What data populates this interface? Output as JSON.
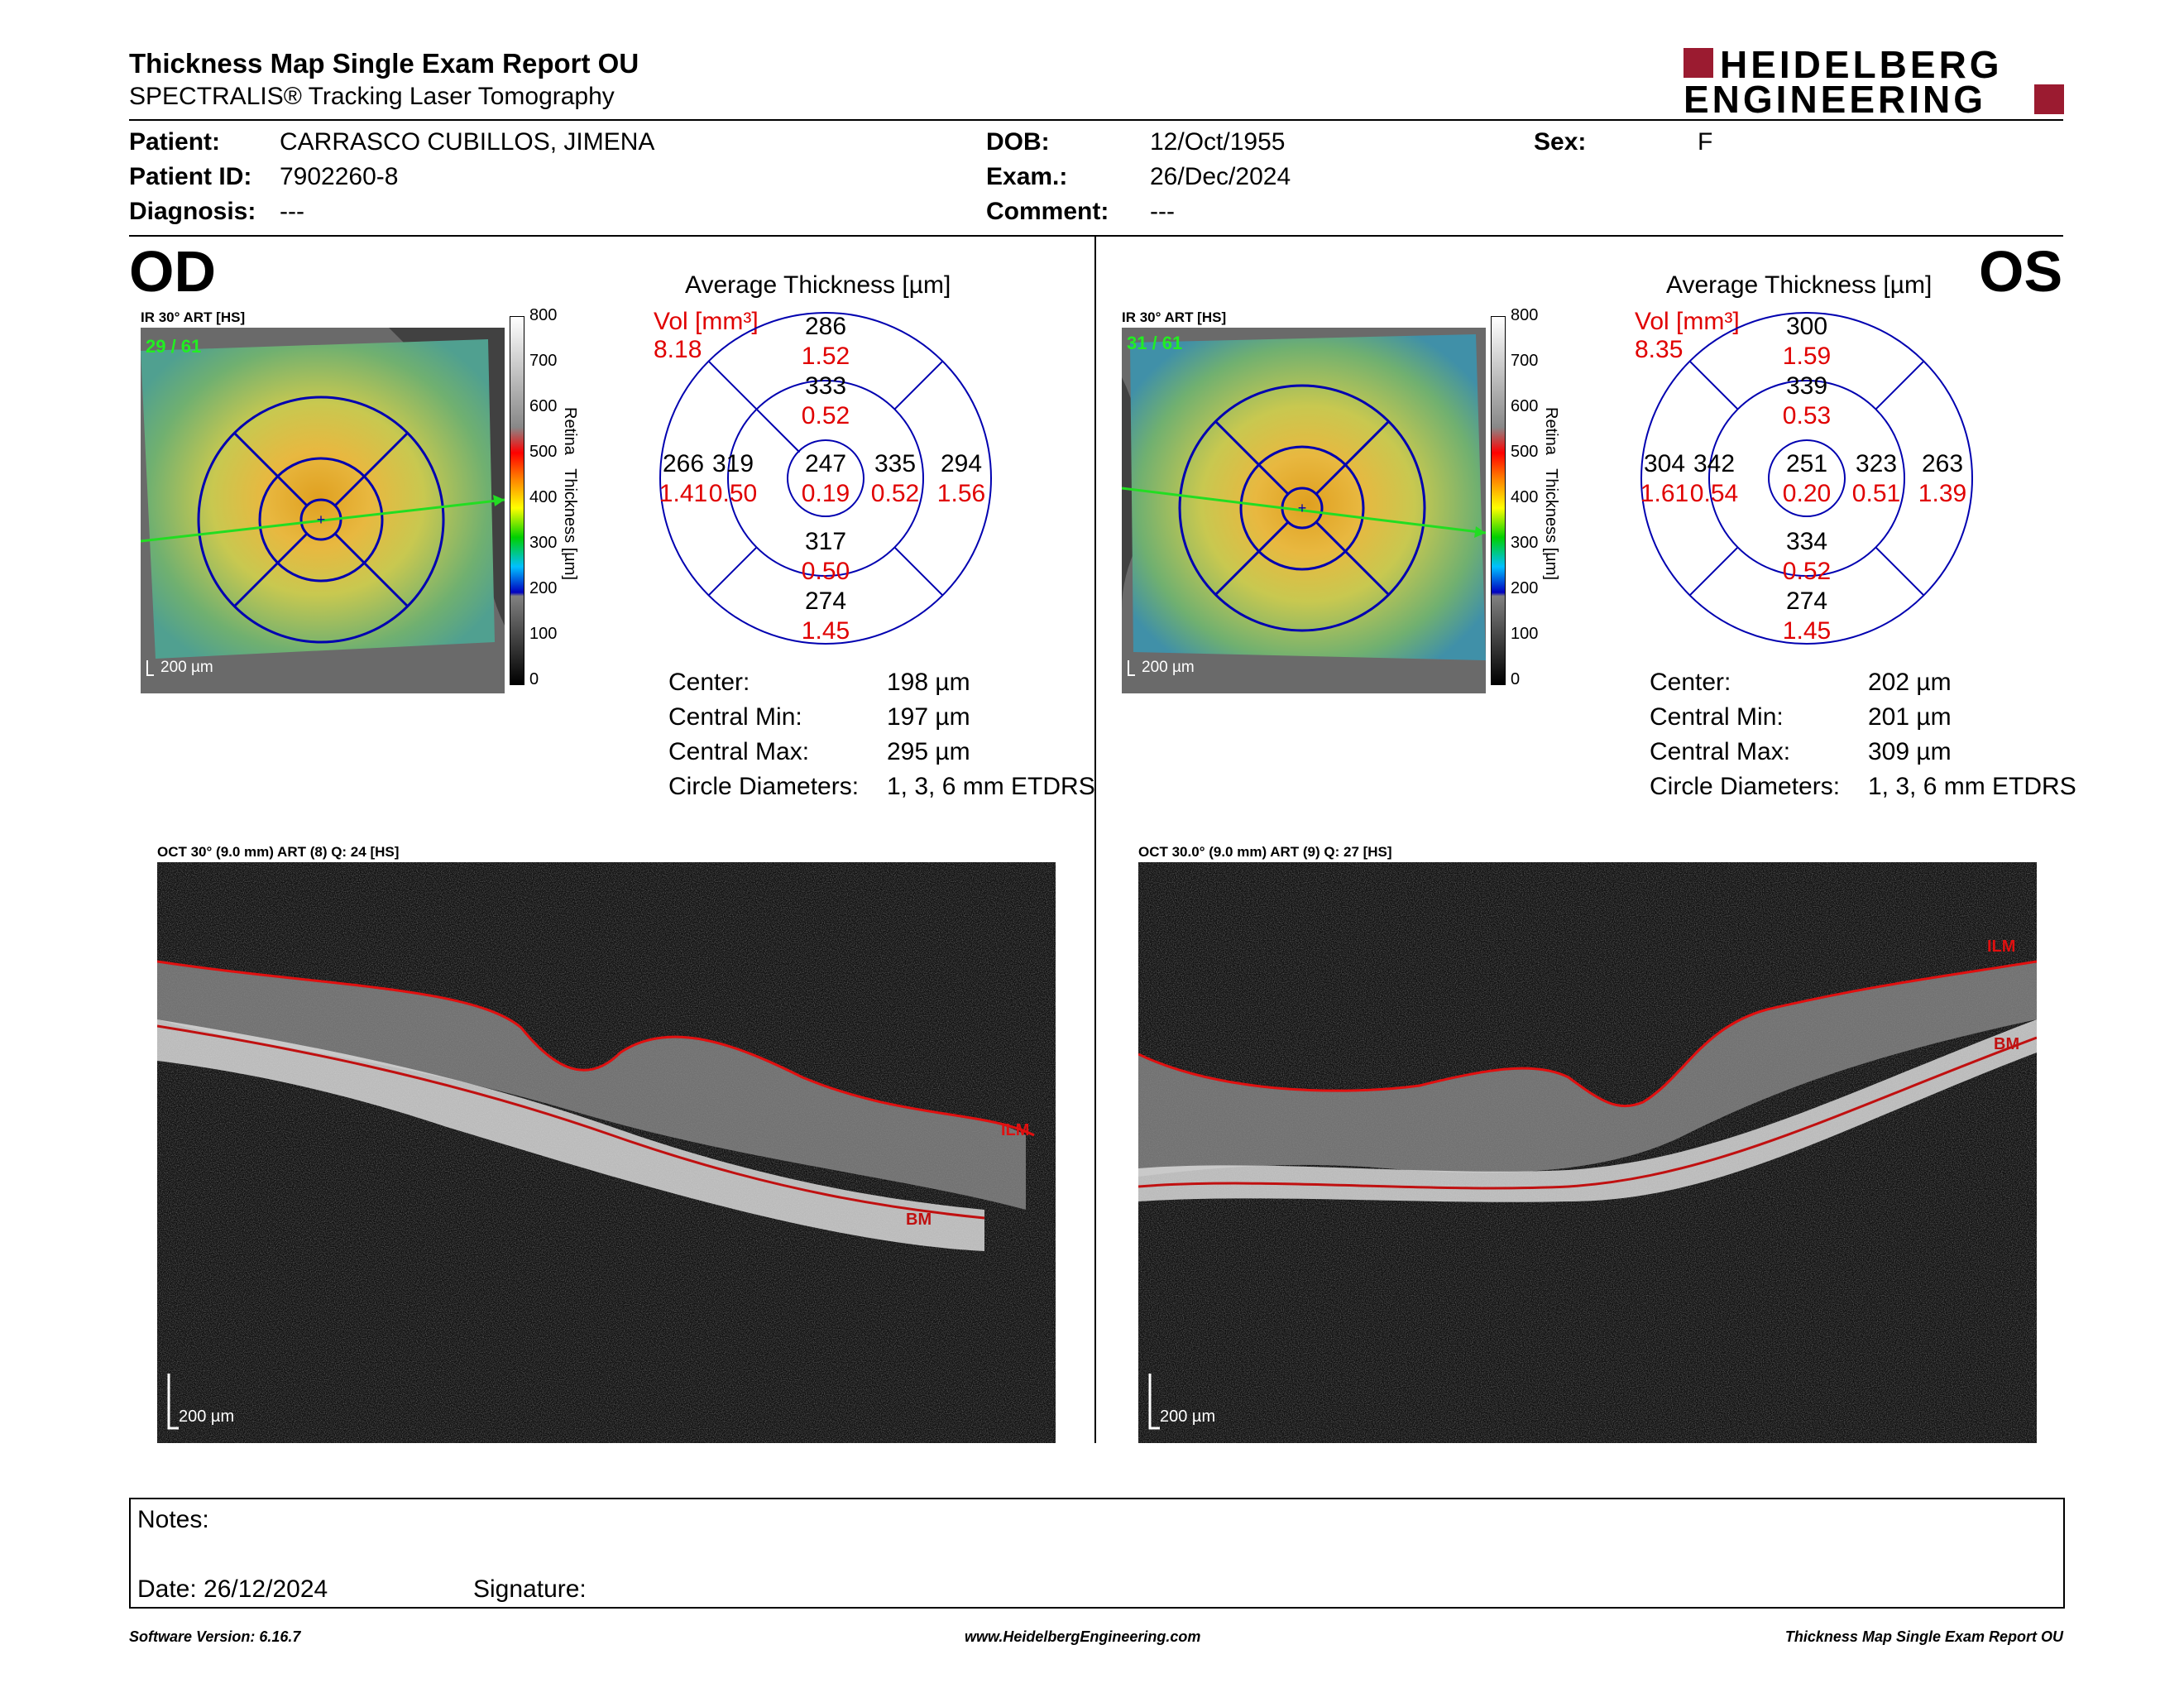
{
  "header": {
    "title": "Thickness Map Single Exam Report OU",
    "subtitle": "SPECTRALIS® Tracking Laser Tomography",
    "logo_line1": "HEIDELBERG",
    "logo_line2": "ENGINEERING"
  },
  "patient": {
    "patient_label": "Patient:",
    "patient_value": "CARRASCO CUBILLOS, JIMENA",
    "id_label": "Patient ID:",
    "id_value": "7902260-8",
    "diagnosis_label": "Diagnosis:",
    "diagnosis_value": "---",
    "dob_label": "DOB:",
    "dob_value": "12/Oct/1955",
    "exam_label": "Exam.:",
    "exam_value": "26/Dec/2024",
    "comment_label": "Comment:",
    "comment_value": "---",
    "sex_label": "Sex:",
    "sex_value": "F"
  },
  "scale": {
    "ticks": [
      "800",
      "700",
      "600",
      "500",
      "400",
      "300",
      "200",
      "100",
      "0"
    ],
    "axis_label": "Retina   Thickness [µm]"
  },
  "od": {
    "eye": "OD",
    "ir_label": "IR 30° ART [HS]",
    "frame_counter": "29 / 61",
    "scalebar": "200 µm",
    "avg_title": "Average Thickness [µm]",
    "vol_label": "Vol [mm³]",
    "vol_total": "8.18",
    "grid": {
      "sup_outer": "286",
      "sup_outer_vol": "1.52",
      "sup_inner": "333",
      "sup_inner_vol": "0.52",
      "temp_outer": "266",
      "temp_outer_vol": "1.41",
      "temp_inner": "319",
      "temp_inner_vol": "0.50",
      "center": "247",
      "center_vol": "0.19",
      "nas_inner": "335",
      "nas_inner_vol": "0.52",
      "nas_outer": "294",
      "nas_outer_vol": "1.56",
      "inf_inner": "317",
      "inf_inner_vol": "0.50",
      "inf_outer": "274",
      "inf_outer_vol": "1.45"
    },
    "stats": {
      "center_label": "Center:",
      "center_value": "198 µm",
      "min_label": "Central Min:",
      "min_value": "197 µm",
      "max_label": "Central Max:",
      "max_value": "295 µm",
      "diam_label": "Circle Diameters:",
      "diam_value": "1, 3, 6 mm ETDRS"
    },
    "oct_label": "OCT 30° (9.0 mm) ART (8) Q: 24 [HS]",
    "ilm": "ILM",
    "bm": "BM",
    "oct_scalebar": "200 µm"
  },
  "os": {
    "eye": "OS",
    "ir_label": "IR 30° ART [HS]",
    "frame_counter": "31 / 61",
    "scalebar": "200 µm",
    "avg_title": "Average Thickness [µm]",
    "vol_label": "Vol [mm³]",
    "vol_total": "8.35",
    "grid": {
      "sup_outer": "300",
      "sup_outer_vol": "1.59",
      "sup_inner": "339",
      "sup_inner_vol": "0.53",
      "temp_outer": "304",
      "temp_outer_vol": "1.61",
      "temp_inner": "342",
      "temp_inner_vol": "0.54",
      "center": "251",
      "center_vol": "0.20",
      "nas_inner": "323",
      "nas_inner_vol": "0.51",
      "nas_outer": "263",
      "nas_outer_vol": "1.39",
      "inf_inner": "334",
      "inf_inner_vol": "0.52",
      "inf_outer": "274",
      "inf_outer_vol": "1.45"
    },
    "stats": {
      "center_label": "Center:",
      "center_value": "202 µm",
      "min_label": "Central Min:",
      "min_value": "201 µm",
      "max_label": "Central Max:",
      "max_value": "309 µm",
      "diam_label": "Circle Diameters:",
      "diam_value": "1, 3, 6 mm ETDRS"
    },
    "oct_label": "OCT 30.0° (9.0 mm) ART (9) Q: 27 [HS]",
    "ilm": "ILM",
    "bm": "BM",
    "oct_scalebar": "200 µm"
  },
  "notes": {
    "notes_label": "Notes:",
    "date_label": "Date: 26/12/2024",
    "signature_label": "Signature:"
  },
  "footer": {
    "version": "Software Version: 6.16.7",
    "url": "www.HeidelbergEngineering.com",
    "report": "Thickness Map Single Exam Report OU"
  },
  "colors": {
    "accent_red": "#e00000",
    "grid_blue": "#0000b0",
    "logo_red": "#9b1b30",
    "ilm_line": "#e01010",
    "scan_line": "#22dd22"
  }
}
